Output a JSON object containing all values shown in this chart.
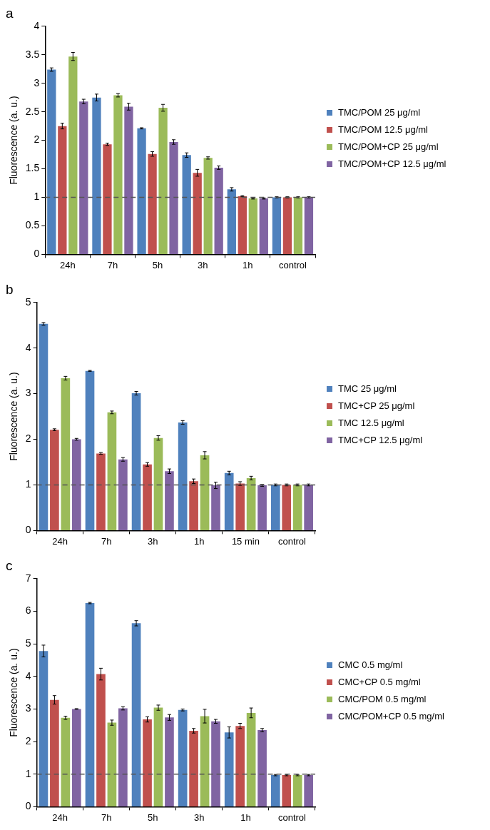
{
  "chart_data": [
    {
      "type": "bar",
      "title": "a",
      "ylabel": "Fluorescence (a. u.)",
      "categories": [
        "24h",
        "7h",
        "5h",
        "3h",
        "1h",
        "control"
      ],
      "ylim": [
        0,
        4
      ],
      "yticks": [
        0,
        0.5,
        1,
        1.5,
        2,
        2.5,
        3,
        3.5,
        4
      ],
      "grid": false,
      "legend": "right",
      "ref_lines": [
        {
          "axis": "y",
          "value": 1,
          "color": "#555555",
          "line_style": "dashed"
        }
      ],
      "series": [
        {
          "name": "TMC/POM 25 μg/ml",
          "color": "#4f81bd",
          "values": [
            3.24,
            2.75,
            2.21,
            1.74,
            1.14,
            1.0
          ],
          "errors": [
            0.03,
            0.06,
            0.01,
            0.04,
            0.03,
            0.01
          ]
        },
        {
          "name": "TMC/POM 12.5 μg/ml",
          "color": "#c0504d",
          "values": [
            2.25,
            1.93,
            1.76,
            1.43,
            1.02,
            1.0
          ],
          "errors": [
            0.05,
            0.02,
            0.04,
            0.06,
            0.01,
            0.01
          ]
        },
        {
          "name": "TMC/POM+CP 25 μg/ml",
          "color": "#9bbb59",
          "values": [
            3.47,
            2.79,
            2.57,
            1.69,
            0.98,
            1.0
          ],
          "errors": [
            0.07,
            0.03,
            0.06,
            0.02,
            0.01,
            0.01
          ]
        },
        {
          "name": "TMC/POM+CP 12.5 μg/ml",
          "color": "#8064a2",
          "values": [
            2.68,
            2.59,
            1.97,
            1.52,
            0.98,
            1.0
          ],
          "errors": [
            0.04,
            0.06,
            0.04,
            0.03,
            0.01,
            0.01
          ]
        }
      ]
    },
    {
      "type": "bar",
      "title": "b",
      "ylabel": "Fluorescence (a. u.)",
      "categories": [
        "24h",
        "7h",
        "3h",
        "1h",
        "15 min",
        "control"
      ],
      "ylim": [
        0,
        5
      ],
      "yticks": [
        0,
        1,
        2,
        3,
        4,
        5
      ],
      "grid": false,
      "legend": "right",
      "ref_lines": [
        {
          "axis": "y",
          "value": 1,
          "color": "#555555",
          "line_style": "dashed"
        }
      ],
      "series": [
        {
          "name": "TMC 25 μg/ml",
          "color": "#4f81bd",
          "values": [
            4.53,
            3.5,
            3.01,
            2.37,
            1.26,
            1.0
          ],
          "errors": [
            0.03,
            0.01,
            0.04,
            0.04,
            0.04,
            0.02
          ]
        },
        {
          "name": "TMC+CP 25 μg/ml",
          "color": "#c0504d",
          "values": [
            2.21,
            1.69,
            1.45,
            1.08,
            1.03,
            1.0
          ],
          "errors": [
            0.02,
            0.02,
            0.04,
            0.05,
            0.04,
            0.02
          ]
        },
        {
          "name": "TMC 12.5 μg/ml",
          "color": "#9bbb59",
          "values": [
            3.34,
            2.59,
            2.03,
            1.65,
            1.15,
            1.0
          ],
          "errors": [
            0.04,
            0.03,
            0.05,
            0.08,
            0.04,
            0.02
          ]
        },
        {
          "name": "TMC+CP 12.5 μg/ml",
          "color": "#8064a2",
          "values": [
            2.0,
            1.56,
            1.3,
            0.99,
            0.99,
            1.0
          ],
          "errors": [
            0.02,
            0.04,
            0.05,
            0.07,
            0.02,
            0.02
          ]
        }
      ]
    },
    {
      "type": "bar",
      "title": "c",
      "ylabel": "Fluorescence (a. u.)",
      "categories": [
        "24h",
        "7h",
        "5h",
        "3h",
        "1h",
        "control"
      ],
      "ylim": [
        0,
        7
      ],
      "yticks": [
        0,
        1,
        2,
        3,
        4,
        5,
        6,
        7
      ],
      "grid": false,
      "legend": "right",
      "ref_lines": [
        {
          "axis": "y",
          "value": 1,
          "color": "#555555",
          "line_style": "dashed"
        }
      ],
      "series": [
        {
          "name": "CMC 0.5 mg/ml",
          "color": "#4f81bd",
          "values": [
            4.78,
            6.25,
            5.63,
            2.97,
            2.28,
            0.97
          ],
          "errors": [
            0.18,
            0.02,
            0.08,
            0.03,
            0.17,
            0.02
          ]
        },
        {
          "name": "CMC+CP 0.5 mg/ml",
          "color": "#c0504d",
          "values": [
            3.28,
            4.07,
            2.68,
            2.33,
            2.48,
            0.97
          ],
          "errors": [
            0.13,
            0.18,
            0.08,
            0.07,
            0.08,
            0.02
          ]
        },
        {
          "name": "CMC/POM 0.5 mg/ml",
          "color": "#9bbb59",
          "values": [
            2.73,
            2.58,
            3.04,
            2.78,
            2.88,
            0.97
          ],
          "errors": [
            0.05,
            0.08,
            0.08,
            0.21,
            0.15,
            0.02
          ]
        },
        {
          "name": "CMC/POM+CP 0.5 mg/ml",
          "color": "#8064a2",
          "values": [
            3.0,
            3.02,
            2.74,
            2.62,
            2.35,
            0.97
          ],
          "errors": [
            0.01,
            0.05,
            0.09,
            0.06,
            0.05,
            0.02
          ]
        }
      ]
    }
  ]
}
